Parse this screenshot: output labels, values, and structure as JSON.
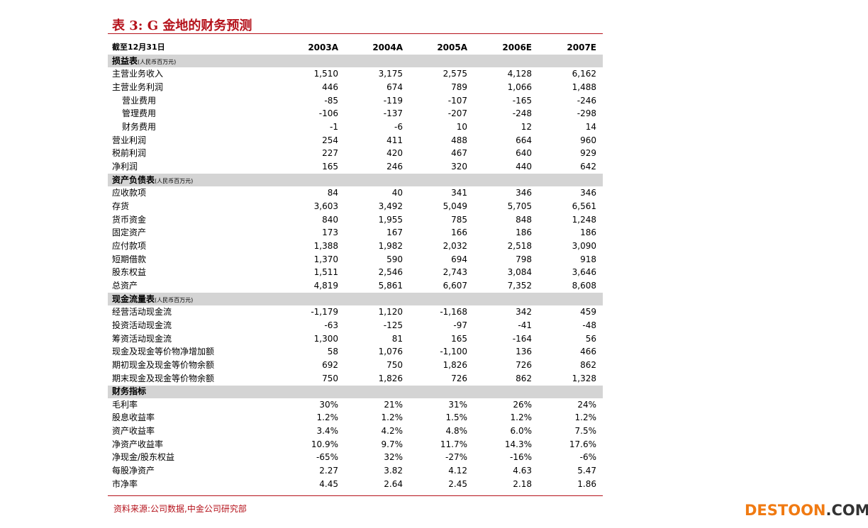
{
  "title": "表 3:  G 金地的财务预测",
  "table": {
    "header": [
      "截至12月31日",
      "2003A",
      "2004A",
      "2005A",
      "2006E",
      "2007E"
    ],
    "sections": [
      {
        "title": "损益表",
        "unit": "(人民币百万元)",
        "rows": [
          {
            "label": "主营业务收入",
            "values": [
              "1,510",
              "3,175",
              "2,575",
              "4,128",
              "6,162"
            ]
          },
          {
            "label": "主营业务利润",
            "values": [
              "446",
              "674",
              "789",
              "1,066",
              "1,488"
            ]
          },
          {
            "label": "营业费用",
            "indent": true,
            "values": [
              "-85",
              "-119",
              "-107",
              "-165",
              "-246"
            ]
          },
          {
            "label": "管理费用",
            "indent": true,
            "values": [
              "-106",
              "-137",
              "-207",
              "-248",
              "-298"
            ]
          },
          {
            "label": "财务费用",
            "indent": true,
            "values": [
              "-1",
              "-6",
              "10",
              "12",
              "14"
            ]
          },
          {
            "label": "营业利润",
            "values": [
              "254",
              "411",
              "488",
              "664",
              "960"
            ]
          },
          {
            "label": "税前利润",
            "values": [
              "227",
              "420",
              "467",
              "640",
              "929"
            ]
          },
          {
            "label": "净利润",
            "values": [
              "165",
              "246",
              "320",
              "440",
              "642"
            ]
          }
        ]
      },
      {
        "title": "资产负债表",
        "unit": "(人民币百万元)",
        "rows": [
          {
            "label": "应收款项",
            "values": [
              "84",
              "40",
              "341",
              "346",
              "346"
            ]
          },
          {
            "label": "存货",
            "values": [
              "3,603",
              "3,492",
              "5,049",
              "5,705",
              "6,561"
            ]
          },
          {
            "label": "货币资金",
            "values": [
              "840",
              "1,955",
              "785",
              "848",
              "1,248"
            ]
          },
          {
            "label": "固定资产",
            "values": [
              "173",
              "167",
              "166",
              "186",
              "186"
            ]
          },
          {
            "label": "应付款项",
            "values": [
              "1,388",
              "1,982",
              "2,032",
              "2,518",
              "3,090"
            ]
          },
          {
            "label": "短期借款",
            "values": [
              "1,370",
              "590",
              "694",
              "798",
              "918"
            ]
          },
          {
            "label": "股东权益",
            "values": [
              "1,511",
              "2,546",
              "2,743",
              "3,084",
              "3,646"
            ]
          },
          {
            "label": "总资产",
            "values": [
              "4,819",
              "5,861",
              "6,607",
              "7,352",
              "8,608"
            ]
          }
        ]
      },
      {
        "title": "现金流量表",
        "unit": "(人民币百万元)",
        "rows": [
          {
            "label": "经营活动现金流",
            "values": [
              "-1,179",
              "1,120",
              "-1,168",
              "342",
              "459"
            ]
          },
          {
            "label": "投资活动现金流",
            "values": [
              "-63",
              "-125",
              "-97",
              "-41",
              "-48"
            ]
          },
          {
            "label": "筹资活动现金流",
            "values": [
              "1,300",
              "81",
              "165",
              "-164",
              "56"
            ]
          },
          {
            "label": "现金及现金等价物净增加额",
            "values": [
              "58",
              "1,076",
              "-1,100",
              "136",
              "466"
            ]
          },
          {
            "label": "期初现金及现金等价物余额",
            "values": [
              "692",
              "750",
              "1,826",
              "726",
              "862"
            ]
          },
          {
            "label": "期末现金及现金等价物余额",
            "values": [
              "750",
              "1,826",
              "726",
              "862",
              "1,328"
            ]
          }
        ]
      },
      {
        "title": "财务指标",
        "rows": [
          {
            "label": "毛利率",
            "values": [
              "30%",
              "21%",
              "31%",
              "26%",
              "24%"
            ]
          },
          {
            "label": "股息收益率",
            "values": [
              "1.2%",
              "1.2%",
              "1.5%",
              "1.2%",
              "1.2%"
            ]
          },
          {
            "label": "资产收益率",
            "values": [
              "3.4%",
              "4.2%",
              "4.8%",
              "6.0%",
              "7.5%"
            ]
          },
          {
            "label": "净资产收益率",
            "values": [
              "10.9%",
              "9.7%",
              "11.7%",
              "14.3%",
              "17.6%"
            ]
          },
          {
            "label": "净现金/股东权益",
            "values": [
              "-65%",
              "32%",
              "-27%",
              "-16%",
              "-6%"
            ]
          },
          {
            "label": "每股净资产",
            "values": [
              "2.27",
              "3.82",
              "4.12",
              "4.63",
              "5.47"
            ]
          },
          {
            "label": "市净率",
            "values": [
              "4.45",
              "2.64",
              "2.45",
              "2.18",
              "1.86"
            ]
          }
        ]
      }
    ]
  },
  "source": "资料来源:公司数据,中金公司研究部",
  "watermark": {
    "brand": "DESTOON",
    "suffix": ".COM"
  }
}
